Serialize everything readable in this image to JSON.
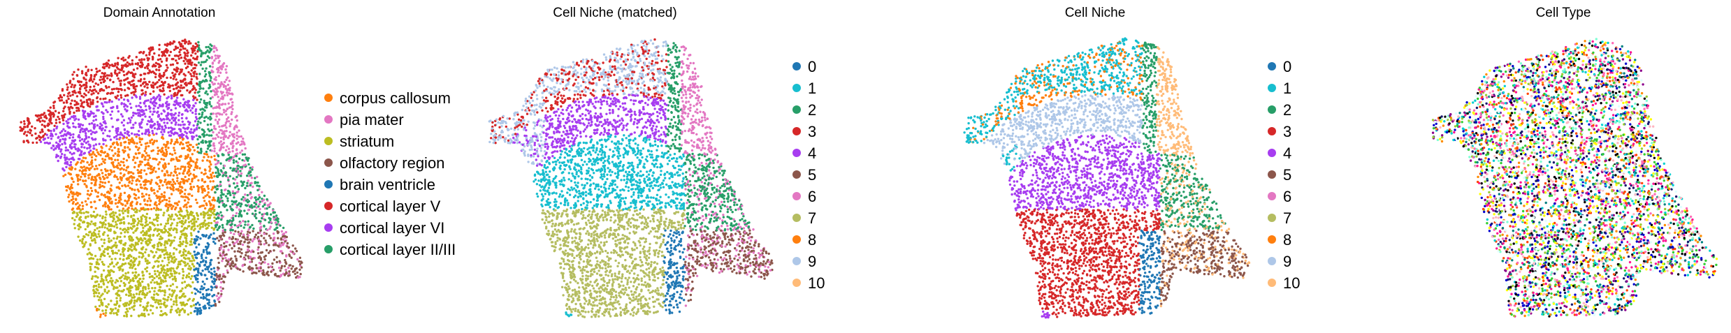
{
  "chart_data": [
    {
      "type": "scatter",
      "title": "Domain Annotation",
      "xlabel": "",
      "ylabel": "",
      "legend": "right",
      "series": [
        {
          "name": "corpus callosum",
          "color": "#ff7f0e"
        },
        {
          "name": "pia mater",
          "color": "#e377c2"
        },
        {
          "name": "striatum",
          "color": "#bcbd22"
        },
        {
          "name": "olfactory region",
          "color": "#8c564b"
        },
        {
          "name": "brain ventricle",
          "color": "#1f77b4"
        },
        {
          "name": "cortical layer V",
          "color": "#d62728"
        },
        {
          "name": "cortical layer VI",
          "color": "#a73df0"
        },
        {
          "name": "cortical layer II/III",
          "color": "#279e68"
        }
      ]
    },
    {
      "type": "scatter",
      "title": "Cell Niche (matched)",
      "xlabel": "",
      "ylabel": "",
      "legend": "right",
      "series": [
        {
          "name": "0",
          "color": "#1f77b4"
        },
        {
          "name": "1",
          "color": "#17becf"
        },
        {
          "name": "2",
          "color": "#279e68"
        },
        {
          "name": "3",
          "color": "#d62728"
        },
        {
          "name": "4",
          "color": "#a73df0"
        },
        {
          "name": "5",
          "color": "#8c564b"
        },
        {
          "name": "6",
          "color": "#e377c2"
        },
        {
          "name": "7",
          "color": "#b5bd61"
        },
        {
          "name": "8",
          "color": "#ff7f0e"
        },
        {
          "name": "9",
          "color": "#aec7e8"
        },
        {
          "name": "10",
          "color": "#ffbb78"
        }
      ]
    },
    {
      "type": "scatter",
      "title": "Cell Niche",
      "xlabel": "",
      "ylabel": "",
      "legend": "right",
      "series": [
        {
          "name": "0",
          "color": "#1f77b4"
        },
        {
          "name": "1",
          "color": "#17becf"
        },
        {
          "name": "2",
          "color": "#279e68"
        },
        {
          "name": "3",
          "color": "#d62728"
        },
        {
          "name": "4",
          "color": "#a73df0"
        },
        {
          "name": "5",
          "color": "#8c564b"
        },
        {
          "name": "6",
          "color": "#e377c2"
        },
        {
          "name": "7",
          "color": "#b5bd61"
        },
        {
          "name": "8",
          "color": "#ff7f0e"
        },
        {
          "name": "9",
          "color": "#aec7e8"
        },
        {
          "name": "10",
          "color": "#ffbb78"
        }
      ]
    },
    {
      "type": "scatter",
      "title": "Cell Type",
      "xlabel": "",
      "ylabel": "",
      "legend": "none",
      "series": []
    }
  ]
}
